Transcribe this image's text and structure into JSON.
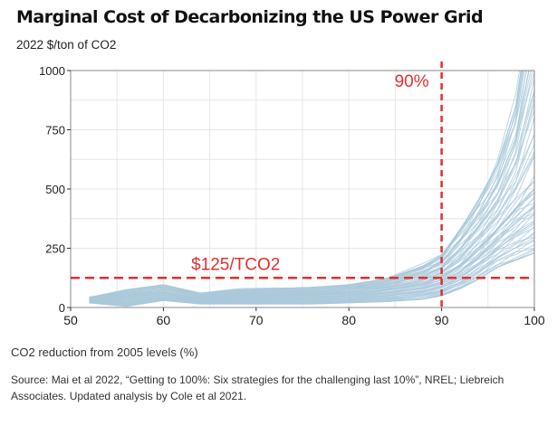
{
  "chart_data": {
    "type": "line",
    "title": "Marginal Cost of Decarbonizing the US Power Grid",
    "ylabel": "2022 $/ton of CO2",
    "xlabel": "CO2 reduction from 2005 levels (%)",
    "xlim": [
      50,
      100
    ],
    "ylim": [
      0,
      1000
    ],
    "xticks": [
      "50",
      "60",
      "70",
      "80",
      "90",
      "100"
    ],
    "yticks": [
      "0",
      "250",
      "500",
      "750",
      "1000"
    ],
    "grid": true,
    "line_color": "#a9c8da",
    "x": [
      52,
      56,
      60,
      64,
      68,
      72,
      76,
      80,
      84,
      88,
      90,
      92,
      94,
      96,
      98,
      100
    ],
    "series": [
      {
        "values": [
          42,
          75,
          95,
          60,
          75,
          80,
          85,
          95,
          120,
          175,
          220,
          330,
          450,
          600,
          850,
          1400
        ]
      },
      {
        "values": [
          30,
          45,
          60,
          35,
          45,
          50,
          55,
          60,
          75,
          100,
          130,
          180,
          250,
          330,
          420,
          500
        ]
      },
      {
        "values": [
          20,
          5,
          30,
          15,
          15,
          15,
          15,
          20,
          25,
          35,
          50,
          80,
          120,
          170,
          200,
          230
        ]
      }
    ],
    "reference_lines": [
      {
        "axis": "x",
        "value": 90,
        "label": "90%",
        "color": "#e03030"
      },
      {
        "axis": "y",
        "value": 125,
        "label": "$125/TCO2",
        "color": "#e03030"
      }
    ]
  },
  "source": "Source: Mai et al 2022, “Getting to 100%: Six strategies for the challenging last 10%”, NREL; Liebreich Associates. Updated analysis by Cole et al 2021."
}
